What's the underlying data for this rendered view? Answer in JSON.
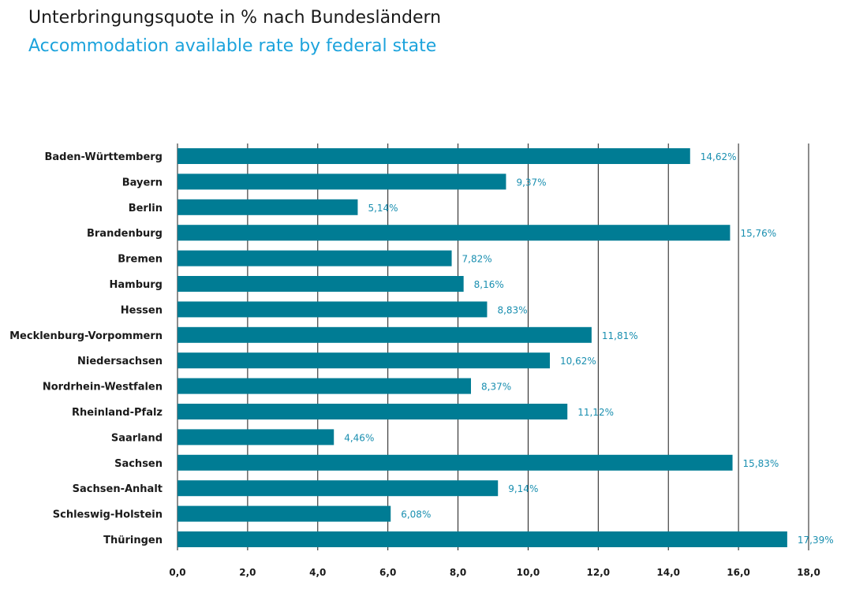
{
  "header": {
    "title": "Unterbringungsquote in % nach Bundesländern",
    "subtitle": "Accommodation available rate by federal state"
  },
  "colors": {
    "bar": "#007c94",
    "value_label": "#1a8fb0",
    "gridline": "#1a1a1a",
    "title": "#1a1a1a",
    "subtitle": "#1ca3dc"
  },
  "chart_data": {
    "type": "bar",
    "orientation": "horizontal",
    "title": "Unterbringungsquote in % nach Bundesländern",
    "subtitle": "Accommodation available rate by federal state",
    "categories": [
      "Baden-Württemberg",
      "Bayern",
      "Berlin",
      "Brandenburg",
      "Bremen",
      "Hamburg",
      "Hessen",
      "Mecklenburg-Vorpommern",
      "Niedersachsen",
      "Nordrhein-Westfalen",
      "Rheinland-Pfalz",
      "Saarland",
      "Sachsen",
      "Sachsen-Anhalt",
      "Schleswig-Holstein",
      "Thüringen"
    ],
    "values": [
      14.62,
      9.37,
      5.14,
      15.76,
      7.82,
      8.16,
      8.83,
      11.81,
      10.62,
      8.37,
      11.12,
      4.46,
      15.83,
      9.14,
      6.08,
      17.39
    ],
    "value_labels": [
      "14,62%",
      "9,37%",
      "5,14%",
      "15,76%",
      "7,82%",
      "8,16%",
      "8,83%",
      "11,81%",
      "10,62%",
      "8,37%",
      "11,12%",
      "4,46%",
      "15,83%",
      "9,14%",
      "6,08%",
      "17,39%"
    ],
    "xlim": [
      0,
      18
    ],
    "xticks": [
      0,
      2,
      4,
      6,
      8,
      10,
      12,
      14,
      16,
      18
    ],
    "xtick_labels": [
      "0,0",
      "2,0",
      "4,0",
      "6,0",
      "8,0",
      "10,0",
      "12,0",
      "14,0",
      "16,0",
      "18,0"
    ],
    "xlabel": "",
    "ylabel": "",
    "grid": true,
    "legend": false
  }
}
